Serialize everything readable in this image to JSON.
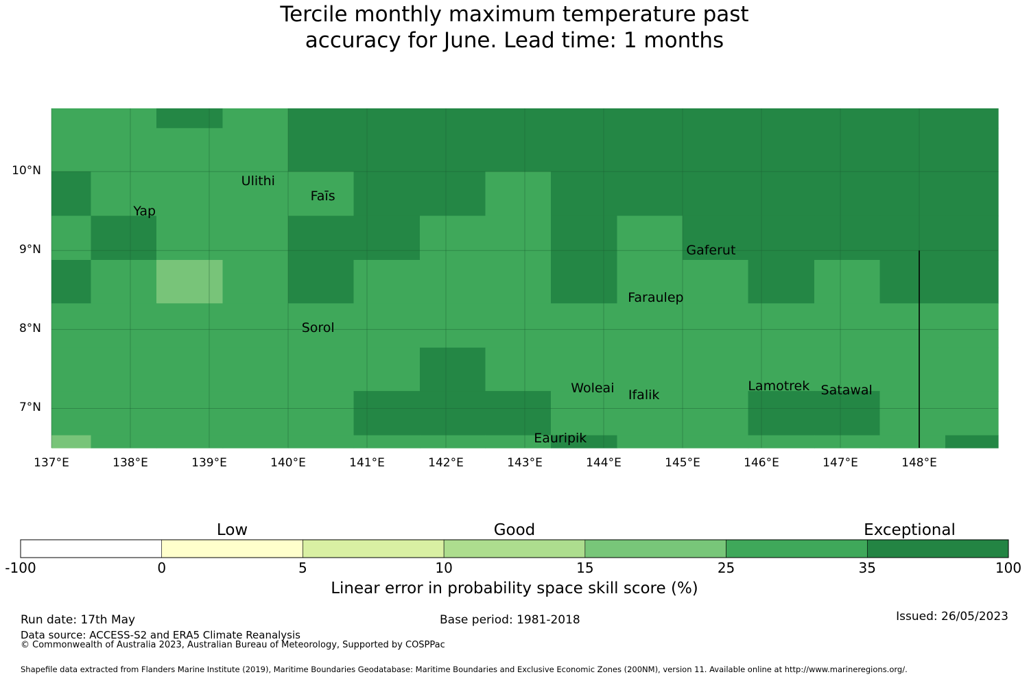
{
  "title_line1": "Tercile monthly maximum temperature past",
  "title_line2": "accuracy for June. Lead time: 1 months",
  "map": {
    "lon_range": [
      137.0,
      149.0
    ],
    "lat_range": [
      6.5,
      10.8
    ],
    "lat_ticks": [
      {
        "value": 10,
        "label": "10°N"
      },
      {
        "value": 9,
        "label": "9°N"
      },
      {
        "value": 8,
        "label": "8°N"
      },
      {
        "value": 7,
        "label": "7°N"
      }
    ],
    "lon_ticks": [
      {
        "value": 137,
        "label": "137°E"
      },
      {
        "value": 138,
        "label": "138°E"
      },
      {
        "value": 139,
        "label": "139°E"
      },
      {
        "value": 140,
        "label": "140°E"
      },
      {
        "value": 141,
        "label": "141°E"
      },
      {
        "value": 142,
        "label": "142°E"
      },
      {
        "value": 143,
        "label": "143°E"
      },
      {
        "value": 144,
        "label": "144°E"
      },
      {
        "value": 145,
        "label": "145°E"
      },
      {
        "value": 146,
        "label": "146°E"
      },
      {
        "value": 147,
        "label": "147°E"
      },
      {
        "value": 148,
        "label": "148°E"
      }
    ],
    "col_edges_lon": [
      137.0,
      137.5,
      138.33,
      139.17,
      140.0,
      140.83,
      141.67,
      142.5,
      143.33,
      144.17,
      145.0,
      145.83,
      146.67,
      147.5,
      148.33,
      149.0
    ],
    "row_edges_lat": [
      10.8,
      10.55,
      10.0,
      9.44,
      8.88,
      8.33,
      7.77,
      7.22,
      6.66,
      6.5
    ],
    "skill_classes": [
      "A A C B C C C C C C C C C C C",
      "A A A A D C C C C C C C C C C",
      "C A A A A C C B C C C C C C C",
      "A C A A C C B B C B C C C C C",
      "C A E A C B B B C B B C B C C",
      "A A A A A B B B B B B B B B B",
      "A A A A A B C B B B B B B A A",
      "A A A A A C C C A A A C C A A",
      "F A A A A A A A C A A A A A C"
    ],
    "skill_class_colors": {
      "A": "#3fa85a",
      "B": "#3fa85a",
      "C": "#248745",
      "D": "#248745",
      "E": "#78c479",
      "F": "#78c479"
    },
    "islands": [
      {
        "name": "Ulithi",
        "lon": 139.62,
        "lat": 9.87
      },
      {
        "name": "Faīs",
        "lon": 140.44,
        "lat": 9.68
      },
      {
        "name": "Yap",
        "lon": 138.18,
        "lat": 9.49
      },
      {
        "name": "Gaferut",
        "lon": 145.36,
        "lat": 8.99
      },
      {
        "name": "Faraulep",
        "lon": 144.66,
        "lat": 8.39
      },
      {
        "name": "Sorol",
        "lon": 140.38,
        "lat": 8.01
      },
      {
        "name": "Woleai",
        "lon": 143.86,
        "lat": 7.25
      },
      {
        "name": "Ifalik",
        "lon": 144.51,
        "lat": 7.16
      },
      {
        "name": "Lamotrek",
        "lon": 146.22,
        "lat": 7.27
      },
      {
        "name": "Satawal",
        "lon": 147.08,
        "lat": 7.22
      },
      {
        "name": "Eauripik",
        "lon": 143.45,
        "lat": 6.61
      }
    ],
    "boundary_line": {
      "lon": 148.0,
      "lat_top": 9.0,
      "lat_bottom": 6.5
    }
  },
  "colorbar": {
    "segments": [
      {
        "from": "-100",
        "to": "0",
        "color": "#ffffff"
      },
      {
        "from": "0",
        "to": "5",
        "color": "#ffffcc"
      },
      {
        "from": "5",
        "to": "10",
        "color": "#d9f0a3"
      },
      {
        "from": "10",
        "to": "15",
        "color": "#addd8e"
      },
      {
        "from": "15",
        "to": "25",
        "color": "#78c679"
      },
      {
        "from": "25",
        "to": "35",
        "color": "#3fa85a"
      },
      {
        "from": "35",
        "to": "100",
        "color": "#238443"
      }
    ],
    "tick_labels": [
      "-100",
      "0",
      "5",
      "10",
      "15",
      "25",
      "35",
      "100"
    ],
    "category_labels": [
      "Low",
      "Good",
      "Exceptional"
    ],
    "title": "Linear error in probability space skill score (%)"
  },
  "footer": {
    "run_date": "Run date: 17th May",
    "data_source": "Data source: ACCESS-S2 and ERA5 Climate Reanalysis",
    "copyright": "© Commonwealth of Australia 2023, Australian Bureau of Meteorology, Supported by COSPPac",
    "base_period": "Base period: 1981-2018",
    "issued": "Issued: 26/05/2023",
    "shapefile": "Shapefile data extracted from Flanders Marine Institute (2019), Maritime Boundaries Geodatabase: Maritime Boundaries and Exclusive Economic Zones (200NM), version 11. Available online at http://www.marineregions.org/."
  }
}
